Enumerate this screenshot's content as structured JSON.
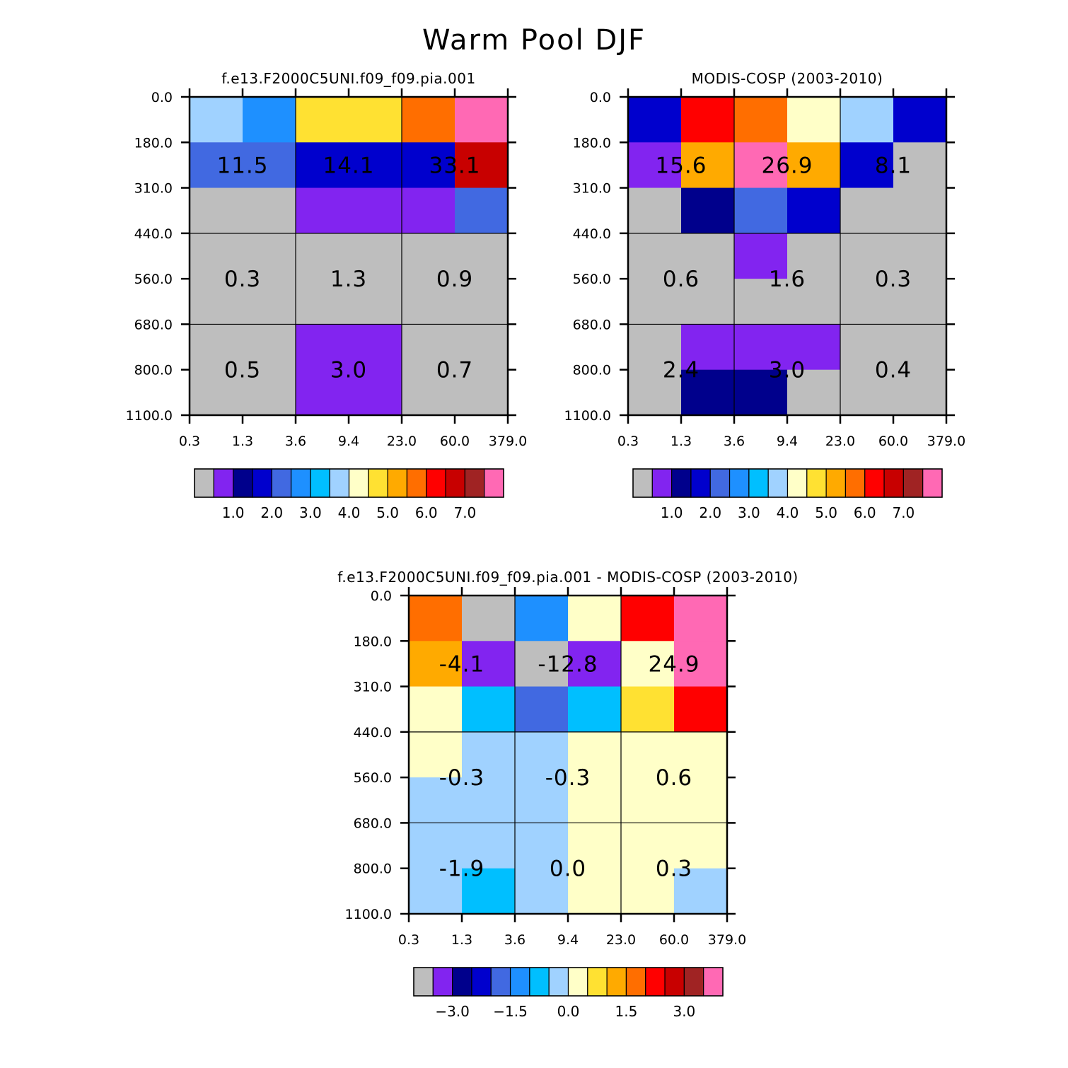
{
  "figure_title": "Warm Pool DJF",
  "palettes": {
    "absolute": [
      "#bebebe",
      "#8224f0",
      "#00008c",
      "#0000cd",
      "#4169e1",
      "#1e90ff",
      "#00bfff",
      "#a0d2ff",
      "#ffffc8",
      "#ffe132",
      "#ffaa00",
      "#ff6e00",
      "#ff0000",
      "#c80000",
      "#a02323",
      "#ff69b4"
    ],
    "difference": [
      "#bebebe",
      "#8224f0",
      "#00008c",
      "#0000cd",
      "#4169e1",
      "#1e90ff",
      "#00bfff",
      "#a0d2ff",
      "#ffffc8",
      "#ffe132",
      "#ffaa00",
      "#ff6e00",
      "#ff0000",
      "#c80000",
      "#a02323",
      "#ff69b4"
    ]
  },
  "chart_data": [
    {
      "type": "heatmap",
      "title": "f.e13.F2000C5UNI.f09_f09.pia.001",
      "x_tick_labels": [
        "0.3",
        "1.3",
        "3.6",
        "9.4",
        "23.0",
        "60.0",
        "379.0"
      ],
      "y_tick_labels": [
        "0.0",
        "180.0",
        "310.0",
        "440.0",
        "560.0",
        "680.0",
        "800.0",
        "1100.0"
      ],
      "x_edges": [
        0.3,
        1.3,
        3.6,
        9.4,
        23.0,
        60.0,
        379.0
      ],
      "y_edges": [
        0.0,
        180.0,
        310.0,
        440.0,
        560.0,
        680.0,
        800.0,
        1100.0
      ],
      "cell_color_index": [
        [
          7,
          5,
          9,
          9,
          11,
          15
        ],
        [
          4,
          4,
          3,
          3,
          3,
          13
        ],
        [
          0,
          0,
          1,
          1,
          1,
          4
        ],
        [
          0,
          0,
          0,
          0,
          0,
          0
        ],
        [
          0,
          0,
          0,
          0,
          0,
          0
        ],
        [
          0,
          0,
          1,
          1,
          0,
          0
        ],
        [
          0,
          0,
          1,
          1,
          0,
          0
        ]
      ],
      "group_values": [
        {
          "text": "11.5",
          "col": 0,
          "row": 1
        },
        {
          "text": "14.1",
          "col": 1,
          "row": 1
        },
        {
          "text": "33.1",
          "col": 2,
          "row": 1
        },
        {
          "text": "0.3",
          "col": 0,
          "row": 2
        },
        {
          "text": "1.3",
          "col": 1,
          "row": 2
        },
        {
          "text": "0.9",
          "col": 2,
          "row": 2
        },
        {
          "text": "0.5",
          "col": 0,
          "row": 3
        },
        {
          "text": "3.0",
          "col": 1,
          "row": 3
        },
        {
          "text": "0.7",
          "col": 2,
          "row": 3
        }
      ],
      "colorbar": {
        "palette": "absolute",
        "labels": [
          "1.0",
          "2.0",
          "3.0",
          "4.0",
          "5.0",
          "6.0",
          "7.0"
        ]
      }
    },
    {
      "type": "heatmap",
      "title": "MODIS-COSP (2003-2010)",
      "x_tick_labels": [
        "0.3",
        "1.3",
        "3.6",
        "9.4",
        "23.0",
        "60.0",
        "379.0"
      ],
      "y_tick_labels": [
        "0.0",
        "180.0",
        "310.0",
        "440.0",
        "560.0",
        "680.0",
        "800.0",
        "1100.0"
      ],
      "x_edges": [
        0.3,
        1.3,
        3.6,
        9.4,
        23.0,
        60.0,
        379.0
      ],
      "y_edges": [
        0.0,
        180.0,
        310.0,
        440.0,
        560.0,
        680.0,
        800.0,
        1100.0
      ],
      "cell_color_index": [
        [
          3,
          12,
          11,
          8,
          7,
          3
        ],
        [
          1,
          10,
          15,
          10,
          3,
          0
        ],
        [
          0,
          2,
          4,
          3,
          0,
          0
        ],
        [
          0,
          0,
          1,
          0,
          0,
          0
        ],
        [
          0,
          0,
          0,
          0,
          0,
          0
        ],
        [
          0,
          1,
          1,
          1,
          0,
          0
        ],
        [
          0,
          2,
          2,
          0,
          0,
          0
        ]
      ],
      "group_values": [
        {
          "text": "15.6",
          "col": 0,
          "row": 1
        },
        {
          "text": "26.9",
          "col": 1,
          "row": 1
        },
        {
          "text": "8.1",
          "col": 2,
          "row": 1
        },
        {
          "text": "0.6",
          "col": 0,
          "row": 2
        },
        {
          "text": "1.6",
          "col": 1,
          "row": 2
        },
        {
          "text": "0.3",
          "col": 2,
          "row": 2
        },
        {
          "text": "2.4",
          "col": 0,
          "row": 3
        },
        {
          "text": "3.0",
          "col": 1,
          "row": 3
        },
        {
          "text": "0.4",
          "col": 2,
          "row": 3
        }
      ],
      "colorbar": {
        "palette": "absolute",
        "labels": [
          "1.0",
          "2.0",
          "3.0",
          "4.0",
          "5.0",
          "6.0",
          "7.0"
        ]
      }
    },
    {
      "type": "heatmap",
      "title": "f.e13.F2000C5UNI.f09_f09.pia.001 - MODIS-COSP (2003-2010)",
      "x_tick_labels": [
        "0.3",
        "1.3",
        "3.6",
        "9.4",
        "23.0",
        "60.0",
        "379.0"
      ],
      "y_tick_labels": [
        "0.0",
        "180.0",
        "310.0",
        "440.0",
        "560.0",
        "680.0",
        "800.0",
        "1100.0"
      ],
      "x_edges": [
        0.3,
        1.3,
        3.6,
        9.4,
        23.0,
        60.0,
        379.0
      ],
      "y_edges": [
        0.0,
        180.0,
        310.0,
        440.0,
        560.0,
        680.0,
        800.0,
        1100.0
      ],
      "cell_color_index": [
        [
          11,
          0,
          5,
          8,
          12,
          15
        ],
        [
          10,
          1,
          0,
          1,
          8,
          15
        ],
        [
          8,
          6,
          4,
          6,
          9,
          12
        ],
        [
          8,
          7,
          7,
          8,
          8,
          8
        ],
        [
          7,
          7,
          7,
          8,
          8,
          8
        ],
        [
          7,
          7,
          7,
          8,
          8,
          8
        ],
        [
          7,
          6,
          7,
          8,
          8,
          7
        ]
      ],
      "group_values": [
        {
          "text": "-4.1",
          "col": 0,
          "row": 1
        },
        {
          "text": "-12.8",
          "col": 1,
          "row": 1
        },
        {
          "text": "24.9",
          "col": 2,
          "row": 1
        },
        {
          "text": "-0.3",
          "col": 0,
          "row": 2
        },
        {
          "text": "-0.3",
          "col": 1,
          "row": 2
        },
        {
          "text": "0.6",
          "col": 2,
          "row": 2
        },
        {
          "text": "-1.9",
          "col": 0,
          "row": 3
        },
        {
          "text": "0.0",
          "col": 1,
          "row": 3
        },
        {
          "text": "0.3",
          "col": 2,
          "row": 3
        }
      ],
      "colorbar": {
        "palette": "difference",
        "labels": [
          "-3.0",
          "-1.5",
          "0.0",
          "1.5",
          "3.0"
        ]
      }
    }
  ]
}
